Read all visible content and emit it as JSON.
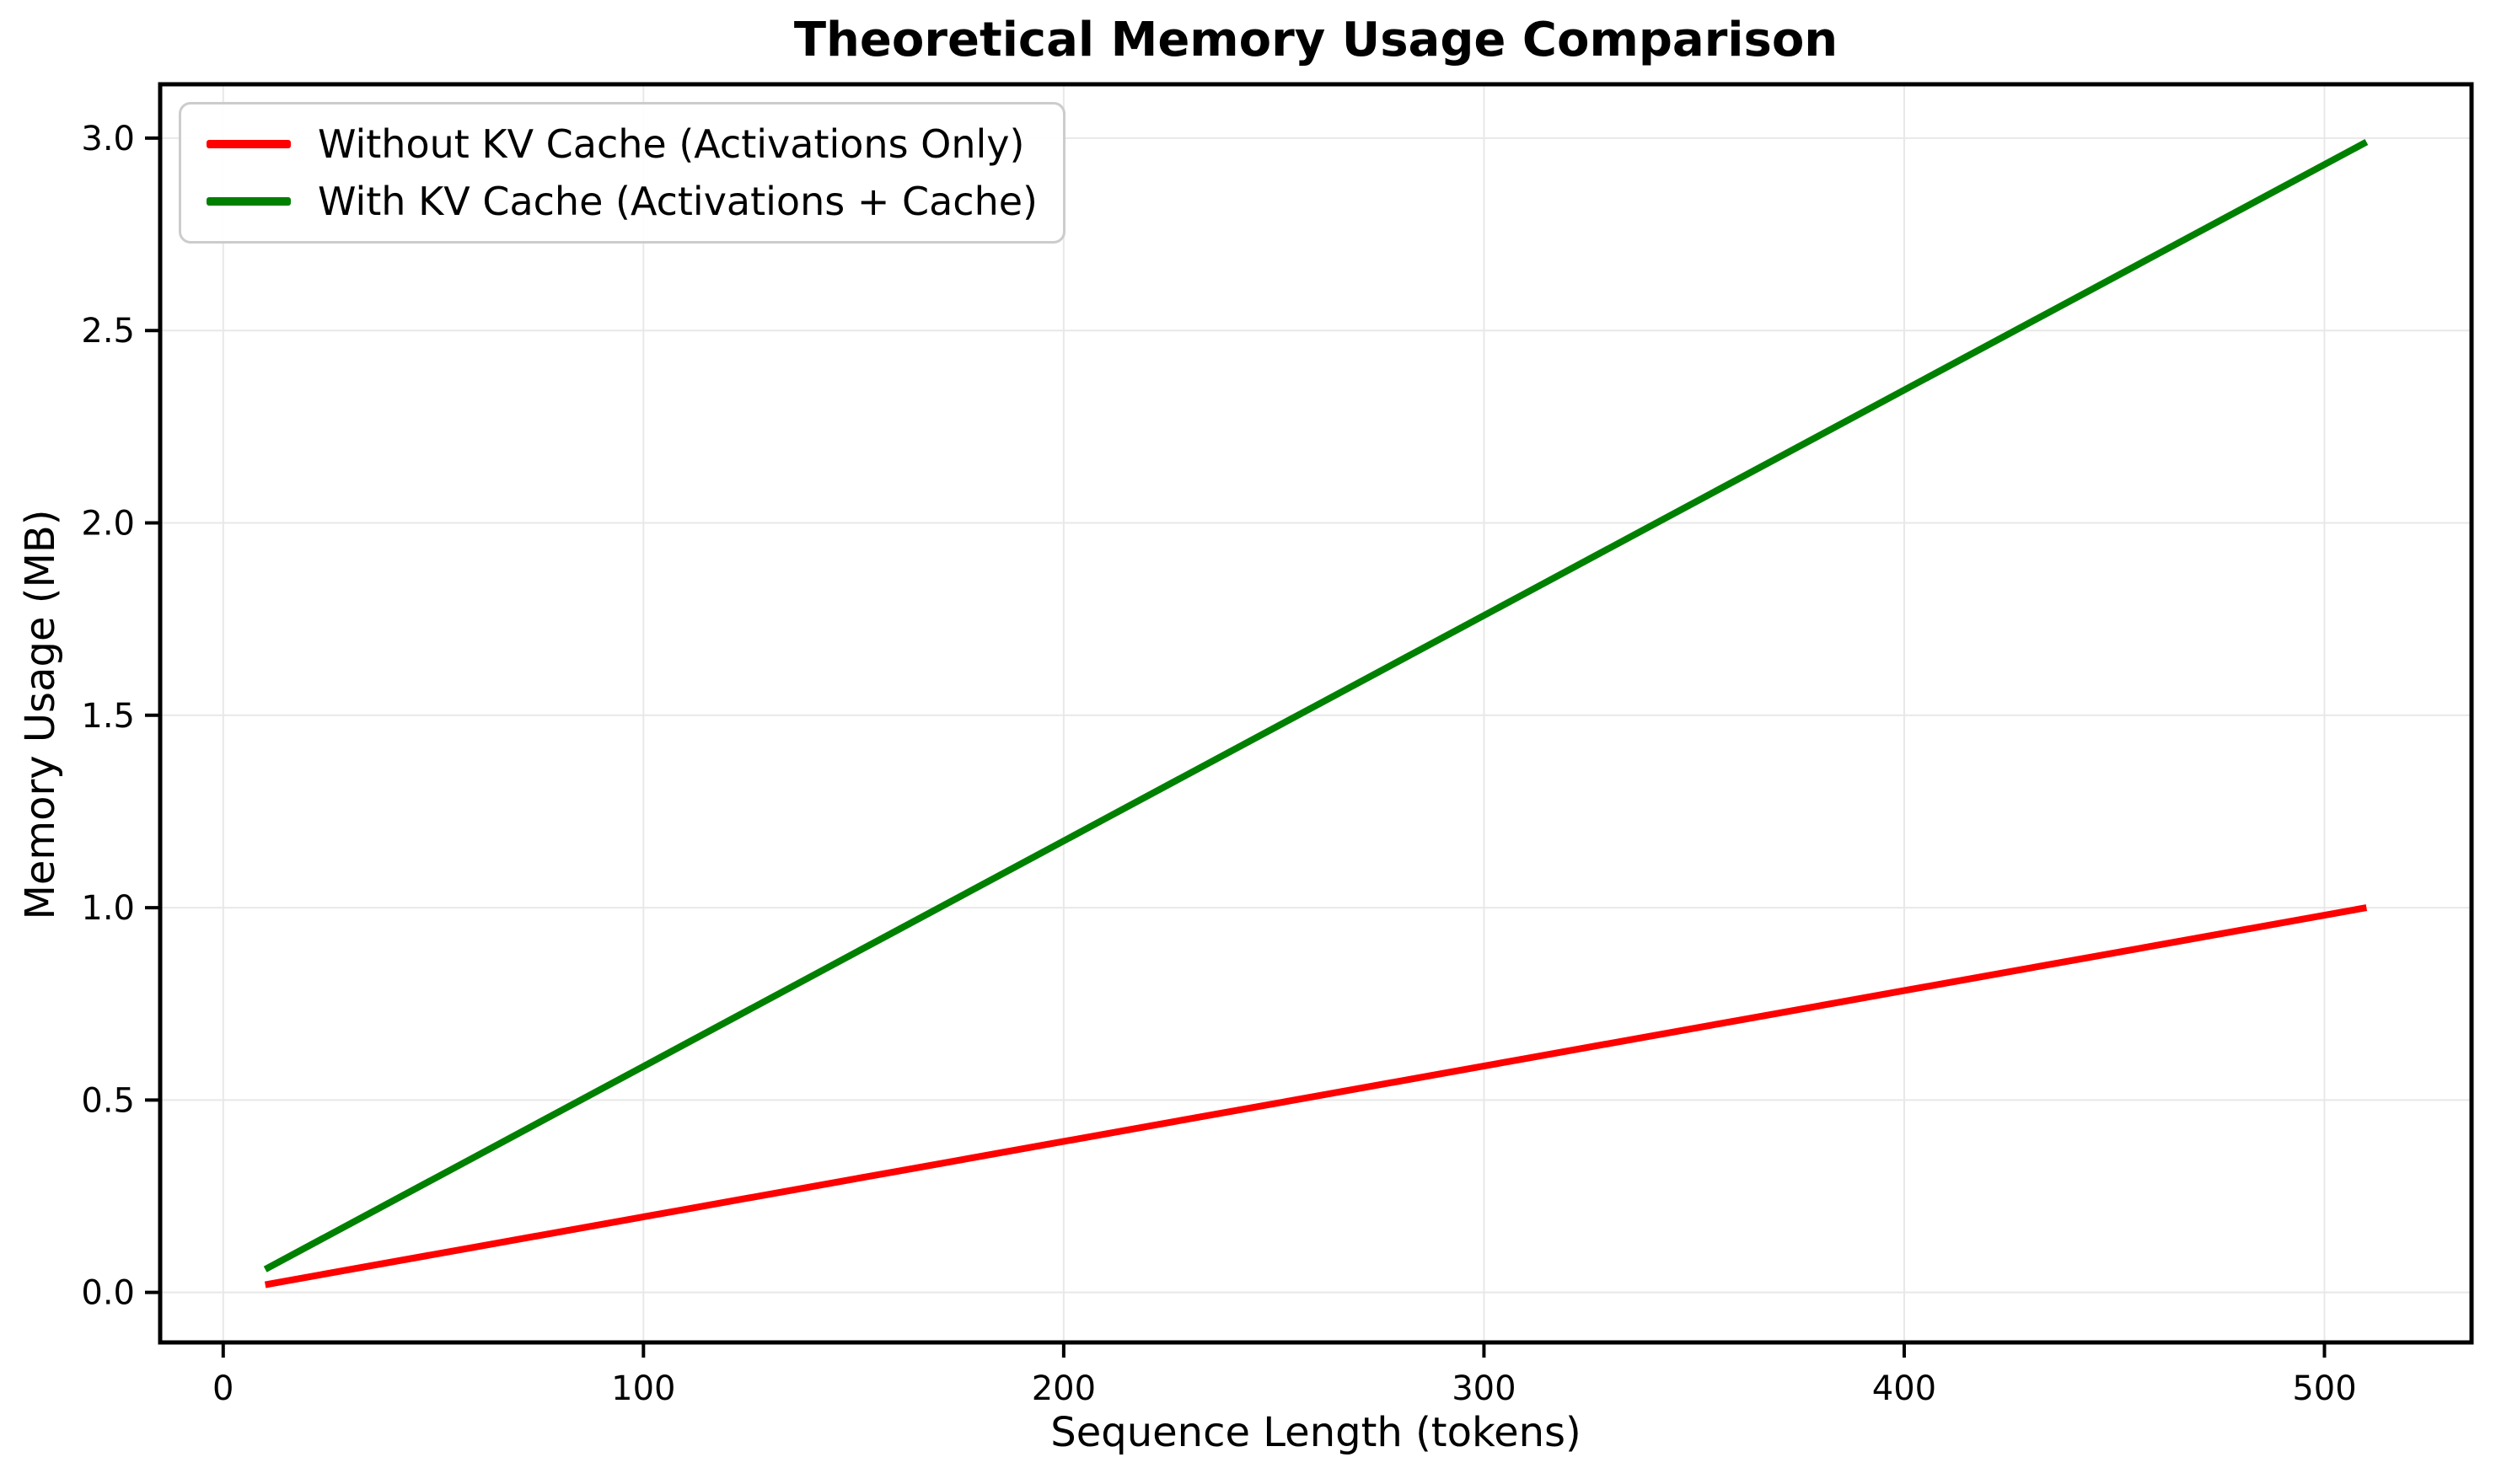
{
  "title": "Theoretical Memory Usage Comparison",
  "chart_data": {
    "type": "line",
    "title": "Theoretical Memory Usage Comparison",
    "xlabel": "Sequence Length (tokens)",
    "ylabel": "Memory Usage (MB)",
    "xlim": [
      -15,
      535
    ],
    "ylim": [
      -0.13,
      3.14
    ],
    "grid": true,
    "grid_color": "#e8e8e8",
    "axis_color": "#000000",
    "background_color": "#ffffff",
    "legend_position": "upper left",
    "x_ticks": [
      0,
      100,
      200,
      300,
      400,
      500
    ],
    "x_tick_labels": [
      "0",
      "100",
      "200",
      "300",
      "400",
      "500"
    ],
    "y_ticks": [
      0.0,
      0.5,
      1.0,
      1.5,
      2.0,
      2.5,
      3.0
    ],
    "y_tick_labels": [
      "0.0",
      "0.5",
      "1.0",
      "1.5",
      "2.0",
      "2.5",
      "3.0"
    ],
    "x": [
      10,
      60,
      110,
      160,
      210,
      260,
      310,
      360,
      410,
      460,
      510
    ],
    "series": [
      {
        "name": "Without KV Cache (Activations Only)",
        "color": "#ff0000",
        "values": [
          0.02,
          0.118,
          0.216,
          0.314,
          0.412,
          0.51,
          0.608,
          0.706,
          0.804,
          0.902,
          1.0
        ]
      },
      {
        "name": "With KV Cache (Activations + Cache)",
        "color": "#008000",
        "values": [
          0.06,
          0.353,
          0.646,
          0.939,
          1.232,
          1.525,
          1.818,
          2.111,
          2.404,
          2.697,
          2.99
        ]
      }
    ]
  }
}
